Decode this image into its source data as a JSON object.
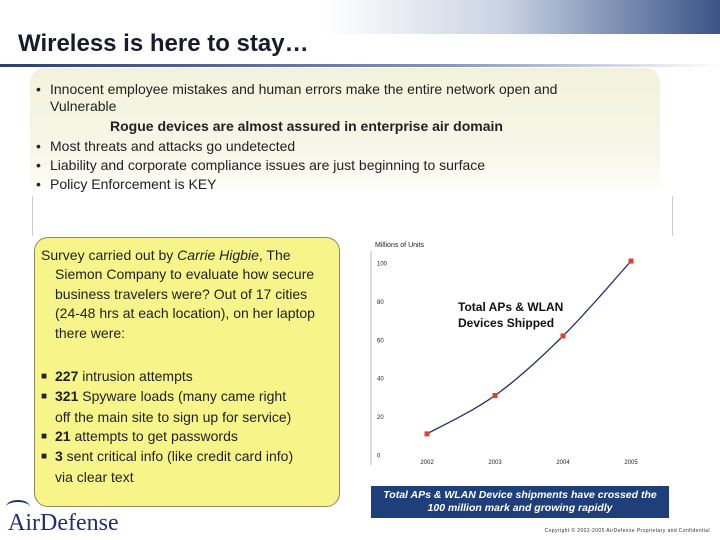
{
  "slide": {
    "title": "Wireless is here to stay…"
  },
  "bullets": [
    {
      "marker": "•",
      "text": "Innocent employee mistakes and human errors make the entire network open and",
      "cont": "Vulnerable"
    },
    {
      "marker": "",
      "text": "Rogue devices are almost assured in enterprise air domain",
      "cont": ""
    },
    {
      "marker": "•",
      "text": "Most threats and attacks go undetected",
      "cont": ""
    },
    {
      "marker": "•",
      "text": "Liability and corporate compliance issues are just beginning to surface",
      "cont": ""
    },
    {
      "marker": "•",
      "text": "Policy Enforcement is KEY",
      "cont": ""
    }
  ],
  "survey": {
    "intro_a": "Survey carried out by ",
    "intro_name": "Carrie Higbie",
    "intro_b": ", The Siemon Company to evaluate how secure business travelers were? Out of 17 cities (24-48 hrs at each location), on her laptop there were:",
    "items": [
      {
        "num": "227",
        "text": " intrusion attempts",
        "cont": ""
      },
      {
        "num": "321",
        "text": " Spyware loads (many came right",
        "cont": "off the main site to sign up for service)"
      },
      {
        "num": "21",
        "text": " attempts to get passwords",
        "cont": ""
      },
      {
        "num": "3",
        "text": " sent critical info (like credit card info)",
        "cont": "via clear text"
      }
    ]
  },
  "chart_data": {
    "type": "line",
    "title": "Total APs & WLAN Devices Shipped",
    "ylabel": "Millions of Units",
    "xlabel": "",
    "x": [
      "2002",
      "2003",
      "2004",
      "2005"
    ],
    "values": [
      11,
      31,
      62,
      101
    ],
    "ylim": [
      0,
      100
    ],
    "yticks": [
      0,
      20,
      40,
      60,
      80,
      100
    ],
    "yticklabels": [
      "0",
      "20",
      "40",
      "60",
      "80",
      "100"
    ],
    "colors": {
      "line": "#2a2a6a",
      "marker": "#e0402a"
    }
  },
  "caption": {
    "line1": "Total APs & WLAN Device shipments have crossed the",
    "line2": "100 million mark and growing rapidly"
  },
  "footer": {
    "logo": "AirDefense",
    "copyright": "Copyright © 2002-2005 AirDefense Proprietary and Confidential"
  }
}
